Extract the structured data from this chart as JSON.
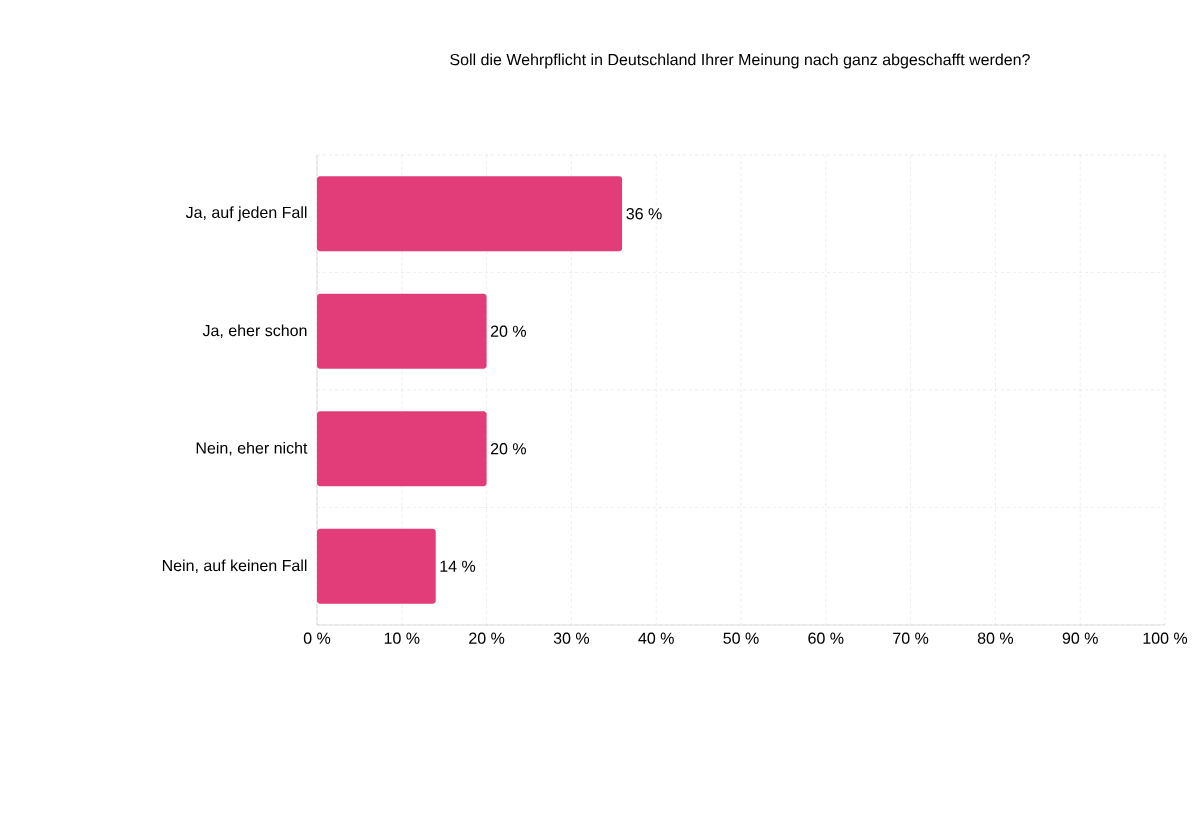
{
  "chart_data": {
    "type": "bar",
    "orientation": "horizontal",
    "title": "Soll die Wehrpflicht in Deutschland Ihrer Meinung nach ganz abgeschafft werden?",
    "categories": [
      "Ja, auf jeden Fall",
      "Ja, eher schon",
      "Nein, eher nicht",
      "Nein, auf keinen Fall"
    ],
    "values": [
      36,
      20,
      20,
      14
    ],
    "value_labels": [
      "36 %",
      "20 %",
      "20 %",
      "14 %"
    ],
    "color": "#e23d78",
    "xlim": [
      0,
      100
    ],
    "xticks": [
      {
        "value": 0,
        "label": "0 %"
      },
      {
        "value": 10,
        "label": "10 %"
      },
      {
        "value": 20,
        "label": "20 %"
      },
      {
        "value": 30,
        "label": "30 %"
      },
      {
        "value": 40,
        "label": "40 %"
      },
      {
        "value": 50,
        "label": "50 %"
      },
      {
        "value": 60,
        "label": "60 %"
      },
      {
        "value": 70,
        "label": "70 %"
      },
      {
        "value": 80,
        "label": "80 %"
      },
      {
        "value": 90,
        "label": "90 %"
      },
      {
        "value": 100,
        "label": "100 %"
      }
    ],
    "grid": true
  }
}
